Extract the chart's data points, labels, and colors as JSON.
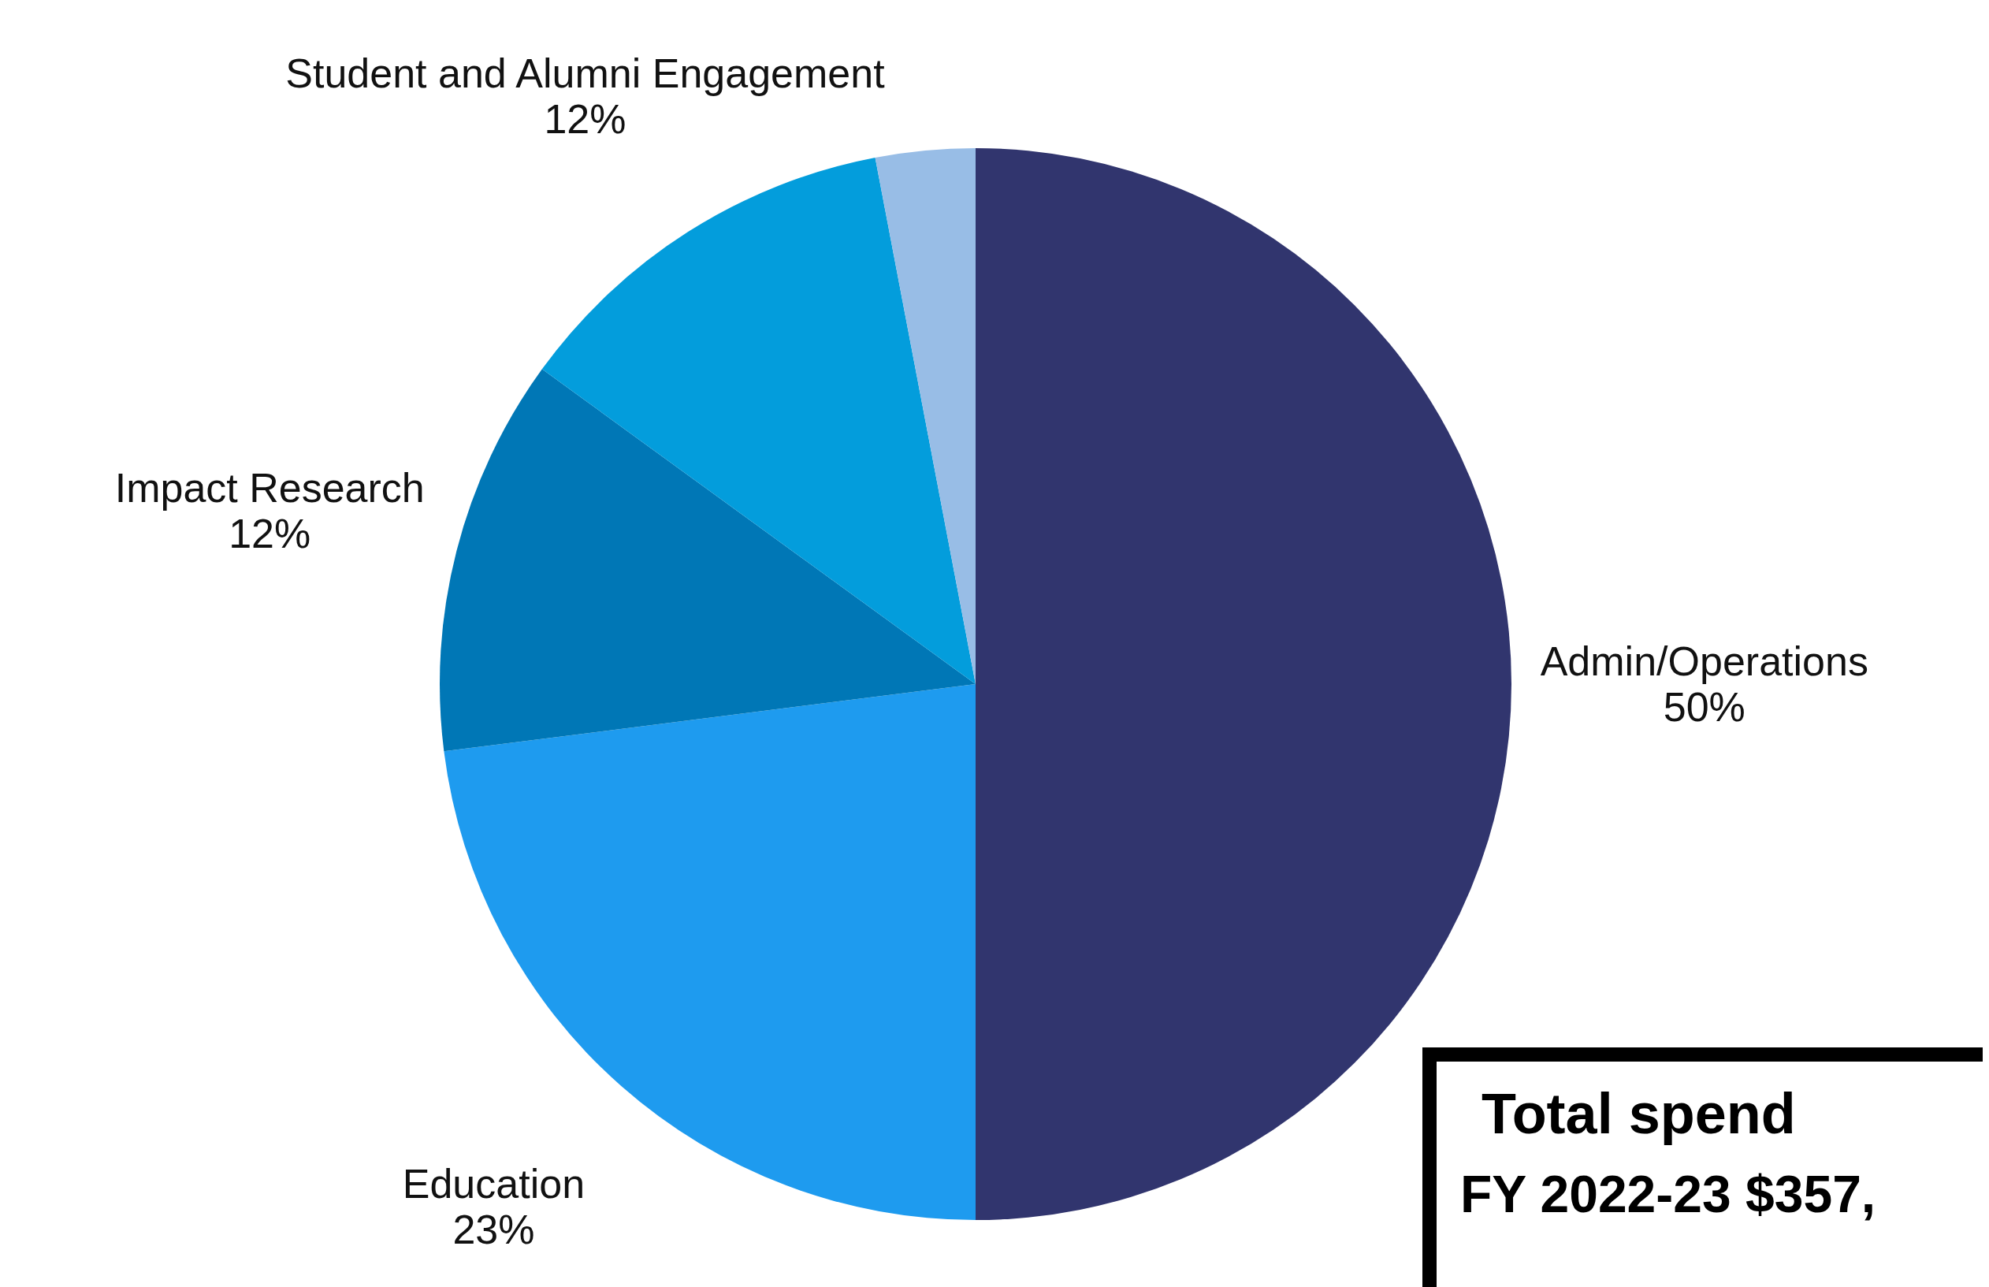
{
  "chart_data": {
    "type": "pie",
    "categories": [
      "Admin/Operations",
      "Education",
      "Impact Research",
      "Student and Alumni Engagement",
      null
    ],
    "values": [
      50,
      23,
      12,
      12,
      3
    ],
    "colors": [
      "#31356e",
      "#1e9bef",
      "#0077b6",
      "#039ddc",
      "#98bde6"
    ],
    "value_labels": [
      "50%",
      "23%",
      "12%",
      "12%",
      null
    ],
    "annotations": [
      "Total spend",
      "FY 2022-23 $357,"
    ]
  }
}
